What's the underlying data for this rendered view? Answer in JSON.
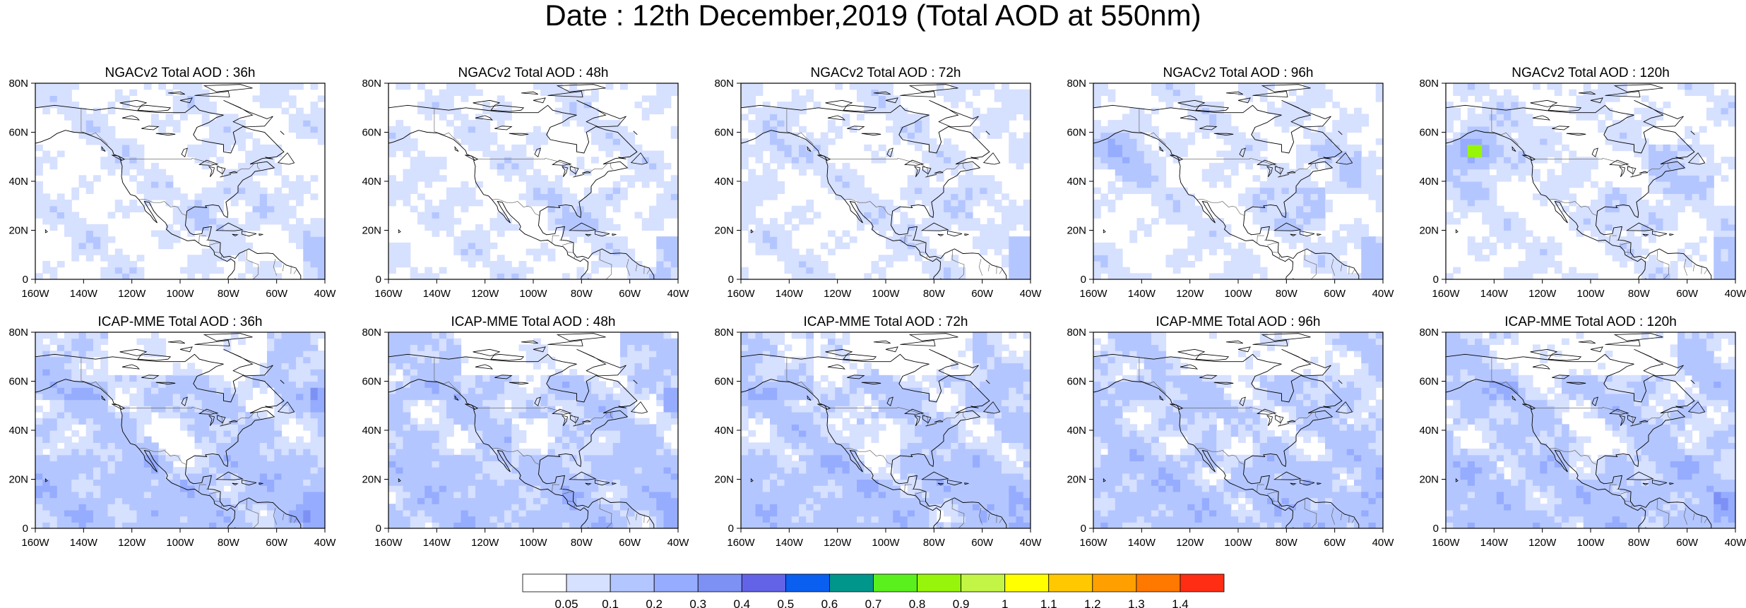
{
  "title": "Date : 12th December,2019 (Total AOD at 550nm)",
  "panels": [
    {
      "title": "NGACv2 Total AOD : 36h",
      "model": "NGAC",
      "lead": 36
    },
    {
      "title": "NGACv2 Total AOD : 48h",
      "model": "NGAC",
      "lead": 48
    },
    {
      "title": "NGACv2 Total AOD : 72h",
      "model": "NGAC",
      "lead": 72
    },
    {
      "title": "NGACv2 Total AOD : 96h",
      "model": "NGAC",
      "lead": 96
    },
    {
      "title": "NGACv2 Total AOD : 120h",
      "model": "NGAC",
      "lead": 120
    },
    {
      "title": "ICAP-MME Total AOD : 36h",
      "model": "ICAP",
      "lead": 36
    },
    {
      "title": "ICAP-MME Total AOD : 48h",
      "model": "ICAP",
      "lead": 48
    },
    {
      "title": "ICAP-MME Total AOD : 72h",
      "model": "ICAP",
      "lead": 72
    },
    {
      "title": "ICAP-MME Total AOD : 96h",
      "model": "ICAP",
      "lead": 96
    },
    {
      "title": "ICAP-MME Total AOD : 120h",
      "model": "ICAP",
      "lead": 120
    }
  ],
  "map_extent": {
    "lon": [
      -160,
      -40
    ],
    "lat": [
      0,
      80
    ]
  },
  "lat_ticks": [
    {
      "value": 80,
      "label": "80N"
    },
    {
      "value": 60,
      "label": "60N"
    },
    {
      "value": 40,
      "label": "40N"
    },
    {
      "value": 20,
      "label": "20N"
    },
    {
      "value": 0,
      "label": "0"
    }
  ],
  "lon_ticks": [
    {
      "value": -160,
      "label": "160W"
    },
    {
      "value": -140,
      "label": "140W"
    },
    {
      "value": -120,
      "label": "120W"
    },
    {
      "value": -100,
      "label": "100W"
    },
    {
      "value": -80,
      "label": "80W"
    },
    {
      "value": -60,
      "label": "60W"
    },
    {
      "value": -40,
      "label": "40W"
    }
  ],
  "colorbar": {
    "colors": [
      "#ffffff",
      "#d6e0ff",
      "#b4c6ff",
      "#96acff",
      "#7d91f5",
      "#6363e8",
      "#0a5ff0",
      "#00968c",
      "#5af01e",
      "#96f50a",
      "#c3f546",
      "#ffff00",
      "#ffc800",
      "#ffa000",
      "#ff7800",
      "#ff2d14"
    ],
    "labels": [
      "0.05",
      "0.1",
      "0.2",
      "0.3",
      "0.4",
      "0.5",
      "0.6",
      "0.7",
      "0.8",
      "0.9",
      "1",
      "1.1",
      "1.2",
      "1.3",
      "1.4"
    ]
  }
}
